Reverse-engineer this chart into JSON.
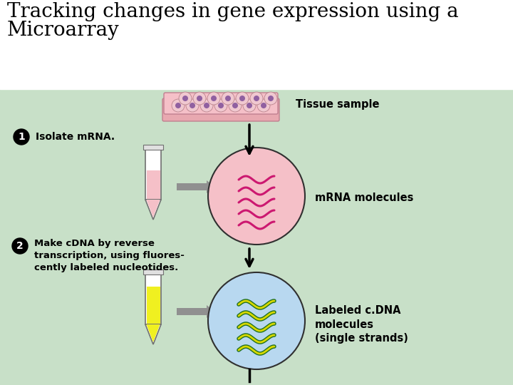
{
  "title_line1": "Tracking changes in gene expression using a",
  "title_line2": "Microarray",
  "title_fontsize": 20,
  "title_color": "#000000",
  "bg_color": "#c8e0c8",
  "top_bg_color": "#ffffff",
  "tissue_label": "Tissue sample",
  "mrna_label": "mRNA molecules",
  "cdna_label": "Labeled c.DNA\nmolecules\n(single strands)",
  "step1_label": "Isolate mRNA.",
  "step2_label": "Make cDNA by reverse\ntranscription, using fluores-\ncently labeled nucleotides.",
  "tissue_color": "#f5c0c8",
  "tube1_liquid_color": "#f5c0c8",
  "tube2_liquid_color": "#f0f020",
  "mrna_circle_color": "#f5c0c8",
  "cdna_circle_color": "#b8d8f0",
  "mrna_strand_color": "#cc1870",
  "cdna_strand_outer_color": "#207020",
  "cdna_strand_inner_color": "#d8d800",
  "arrow_color": "#909090",
  "circle_edge_color": "#303030",
  "tube_color": "#ffffff",
  "tube_edge_color": "#707070"
}
